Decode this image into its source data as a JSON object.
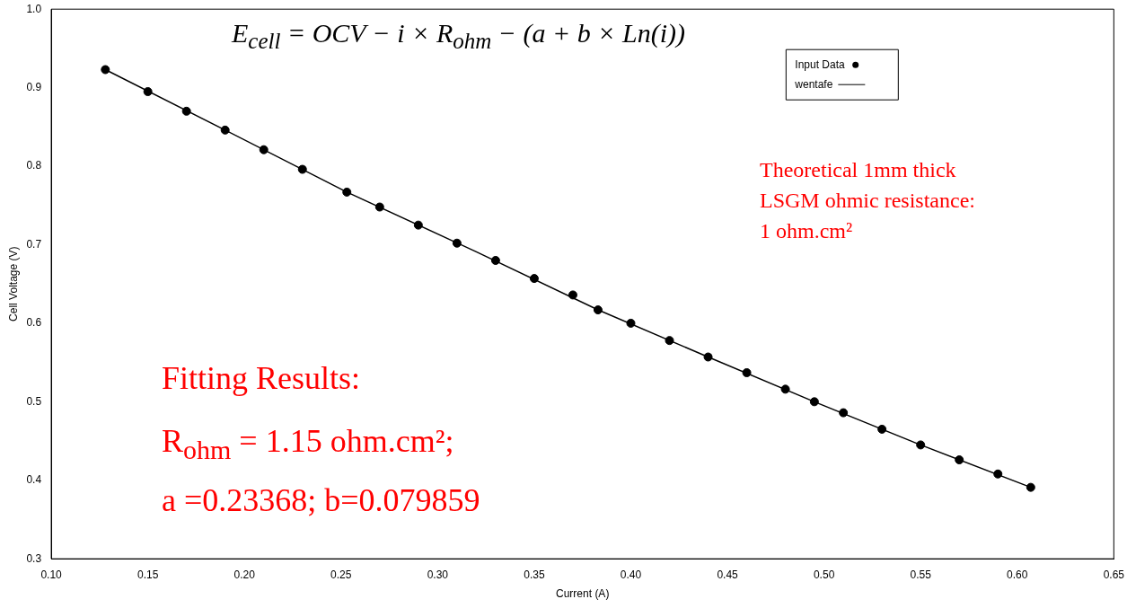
{
  "chart_data": {
    "type": "scatter",
    "xlabel": "Current (A)",
    "ylabel": "Cell Voltage (V)",
    "xlim": [
      0.1,
      0.65
    ],
    "ylim": [
      0.3,
      1.0
    ],
    "xticks": [
      {
        "value": 0.1,
        "label": "0.10"
      },
      0.15,
      {
        "value": 0.2,
        "label": "0.20"
      },
      0.25,
      {
        "value": 0.3,
        "label": "0.30"
      },
      0.35,
      {
        "value": 0.4,
        "label": "0.40"
      },
      0.45,
      {
        "value": 0.5,
        "label": "0.50"
      },
      0.55,
      {
        "value": 0.6,
        "label": "0.60"
      },
      0.65
    ],
    "yticks": [
      0.3,
      0.4,
      0.5,
      0.6,
      0.7,
      0.8,
      0.9,
      {
        "value": 1.0,
        "label": "1.0"
      }
    ],
    "grid": false,
    "legend": "top right",
    "marker": "circle",
    "series": [
      {
        "name": "Input Data",
        "color": "#000000",
        "x": [
          0.128,
          0.15,
          0.17,
          0.19,
          0.21,
          0.23,
          0.253,
          0.27,
          0.29,
          0.31,
          0.33,
          0.35,
          0.37,
          0.383,
          0.4,
          0.42,
          0.44,
          0.46,
          0.48,
          0.495,
          0.51,
          0.53,
          0.55,
          0.57,
          0.59,
          0.607
        ],
        "values": [
          0.923,
          0.895,
          0.87,
          0.846,
          0.821,
          0.796,
          0.767,
          0.748,
          0.725,
          0.702,
          0.68,
          0.657,
          0.636,
          0.617,
          0.6,
          0.578,
          0.557,
          0.537,
          0.516,
          0.5,
          0.486,
          0.465,
          0.445,
          0.426,
          0.408,
          0.391
        ]
      },
      {
        "name": "wentafe",
        "type": "line",
        "color": "#000000",
        "marker": "none",
        "x": [
          0.128,
          0.19,
          0.253,
          0.32,
          0.383,
          0.44,
          0.495,
          0.55,
          0.607
        ],
        "values": [
          0.923,
          0.846,
          0.767,
          0.691,
          0.617,
          0.557,
          0.5,
          0.445,
          0.391
        ]
      }
    ],
    "annotations": [
      "E$_{cell}$ = OCV − i × R$_{ohm}$ − (a + b × Ln(i))",
      "Theoretical 1mm thick LSGM ohmic resistance: 1 ohm.cm²",
      "Fitting Results:",
      "R$_{ohm}$ = 1.15 ohm.cm²;",
      "a =0.23368; b=0.079859"
    ]
  }
}
